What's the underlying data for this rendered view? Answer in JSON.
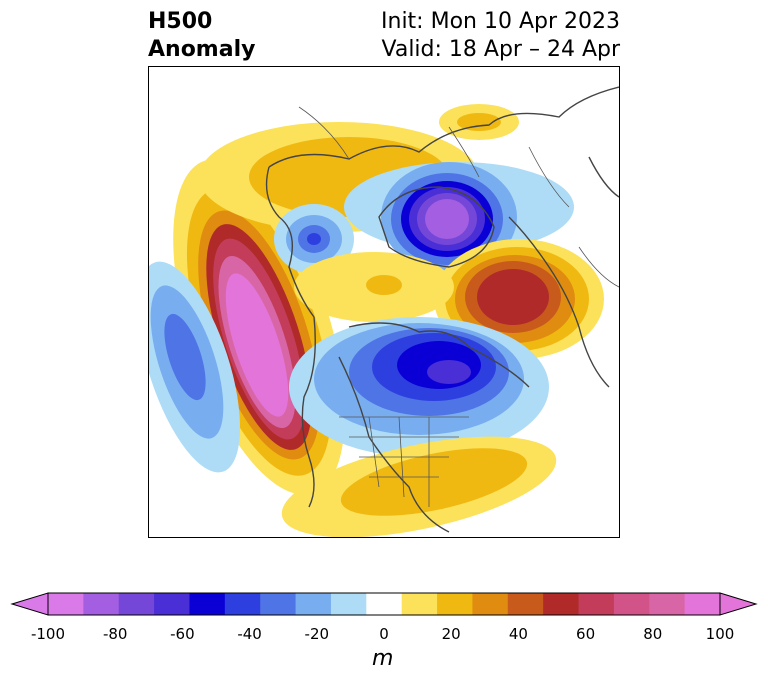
{
  "header": {
    "title_line1": "H500",
    "title_line2": "Anomaly",
    "init_text": "Init: Mon 10 Apr 2023",
    "valid_text": "Valid: 18 Apr – 24 Apr"
  },
  "colorbar": {
    "unit": "m",
    "ticks": [
      "-100",
      "-80",
      "-60",
      "-40",
      "-20",
      "0",
      "20",
      "40",
      "60",
      "80",
      "100"
    ],
    "levels": [
      -100,
      -90,
      -80,
      -70,
      -60,
      -50,
      -40,
      -30,
      -20,
      -10,
      10,
      20,
      30,
      40,
      50,
      60,
      70,
      80,
      90,
      100
    ],
    "colors": [
      "#d97ae8",
      "#a45ee2",
      "#7447d9",
      "#4a2ed6",
      "#0a00d6",
      "#2e3fe0",
      "#4f74e6",
      "#78aef0",
      "#aedcf7",
      "#ffffff",
      "#fbe25a",
      "#f0b912",
      "#e08c10",
      "#c85a1c",
      "#b02a2a",
      "#c33d5a",
      "#d15387",
      "#d866a6",
      "#e374d9"
    ]
  },
  "map": {
    "colors": {
      "purple": "#a45ee2",
      "magenta": "#e374d9",
      "red": "#b02a2a",
      "orange": "#e08c10",
      "yellow": "#fbe25a",
      "gold": "#f0b912",
      "blue": "#0a00d6",
      "lightblue": "#aedcf7",
      "midblue": "#78aef0",
      "land_line": "#444444"
    }
  }
}
